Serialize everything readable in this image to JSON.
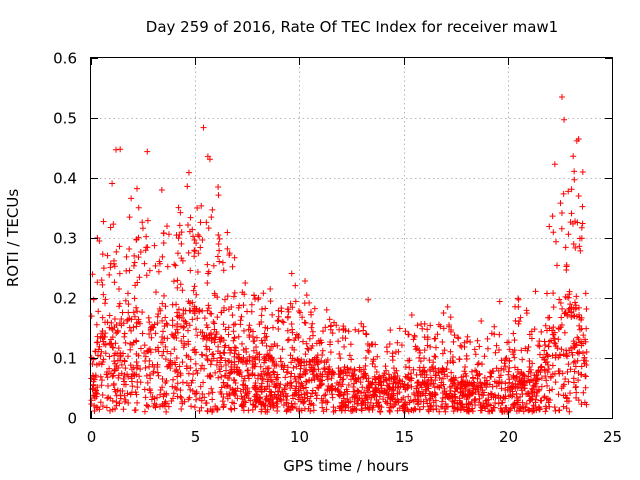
{
  "chart_data": {
    "type": "scatter",
    "title": "Day 259 of 2016, Rate Of TEC Index for receiver maw1",
    "xlabel": "GPS time / hours",
    "ylabel": "ROTI / TECUs",
    "xlim": [
      0,
      25
    ],
    "ylim": [
      0,
      0.6
    ],
    "grid": true,
    "marker": "+",
    "series_color": "#ff0000",
    "x_ticks": [
      0,
      5,
      10,
      15,
      20,
      25
    ],
    "y_ticks": [
      0,
      0.1,
      0.2,
      0.3,
      0.4,
      0.5,
      0.6
    ],
    "x_tick_labels": [
      "0",
      "5",
      "10",
      "15",
      "20",
      "25"
    ],
    "y_tick_labels": [
      "0",
      "0.1",
      "0.2",
      "0.3",
      "0.4",
      "0.5",
      "0.6"
    ],
    "envelope": {
      "hours": [
        0,
        0.5,
        1,
        1.5,
        2,
        2.5,
        3,
        3.5,
        4,
        4.5,
        5,
        5.5,
        6,
        6.5,
        7,
        7.5,
        8,
        8.5,
        9,
        9.5,
        10,
        10.5,
        11,
        11.5,
        12,
        12.5,
        13,
        13.5,
        14,
        14.5,
        15,
        15.5,
        16,
        16.5,
        17,
        17.5,
        18,
        18.5,
        19,
        19.5,
        20,
        20.5,
        21,
        21.5,
        22,
        22.5,
        23,
        23.5,
        23.8
      ],
      "typical_roti": [
        0.06,
        0.09,
        0.1,
        0.1,
        0.11,
        0.1,
        0.1,
        0.11,
        0.11,
        0.12,
        0.13,
        0.12,
        0.11,
        0.1,
        0.08,
        0.07,
        0.07,
        0.06,
        0.06,
        0.06,
        0.06,
        0.06,
        0.06,
        0.05,
        0.05,
        0.05,
        0.05,
        0.04,
        0.04,
        0.04,
        0.04,
        0.05,
        0.05,
        0.05,
        0.05,
        0.04,
        0.04,
        0.04,
        0.04,
        0.05,
        0.05,
        0.05,
        0.04,
        0.05,
        0.08,
        0.12,
        0.14,
        0.12,
        0.08
      ],
      "max_roti": [
        0.3,
        0.36,
        0.45,
        0.33,
        0.39,
        0.44,
        0.32,
        0.38,
        0.35,
        0.41,
        0.36,
        0.48,
        0.4,
        0.35,
        0.25,
        0.21,
        0.22,
        0.21,
        0.23,
        0.24,
        0.25,
        0.23,
        0.22,
        0.18,
        0.18,
        0.17,
        0.2,
        0.15,
        0.14,
        0.15,
        0.16,
        0.18,
        0.21,
        0.17,
        0.22,
        0.19,
        0.15,
        0.16,
        0.18,
        0.2,
        0.19,
        0.21,
        0.23,
        0.21,
        0.35,
        0.53,
        0.45,
        0.47,
        0.17
      ]
    },
    "notable_points": [
      {
        "x": 22.6,
        "y": 0.535
      },
      {
        "x": 22.7,
        "y": 0.497
      },
      {
        "x": 5.4,
        "y": 0.484
      },
      {
        "x": 1.2,
        "y": 0.447
      },
      {
        "x": 1.4,
        "y": 0.448
      },
      {
        "x": 2.7,
        "y": 0.444
      },
      {
        "x": 4.7,
        "y": 0.409
      },
      {
        "x": 23.4,
        "y": 0.465
      },
      {
        "x": 23.6,
        "y": 0.41
      },
      {
        "x": 6.1,
        "y": 0.385
      },
      {
        "x": 3.4,
        "y": 0.38
      },
      {
        "x": 0.4,
        "y": 0.295
      },
      {
        "x": 13.3,
        "y": 0.197
      },
      {
        "x": 7.4,
        "y": 0.225
      },
      {
        "x": 8.6,
        "y": 0.215
      }
    ]
  }
}
